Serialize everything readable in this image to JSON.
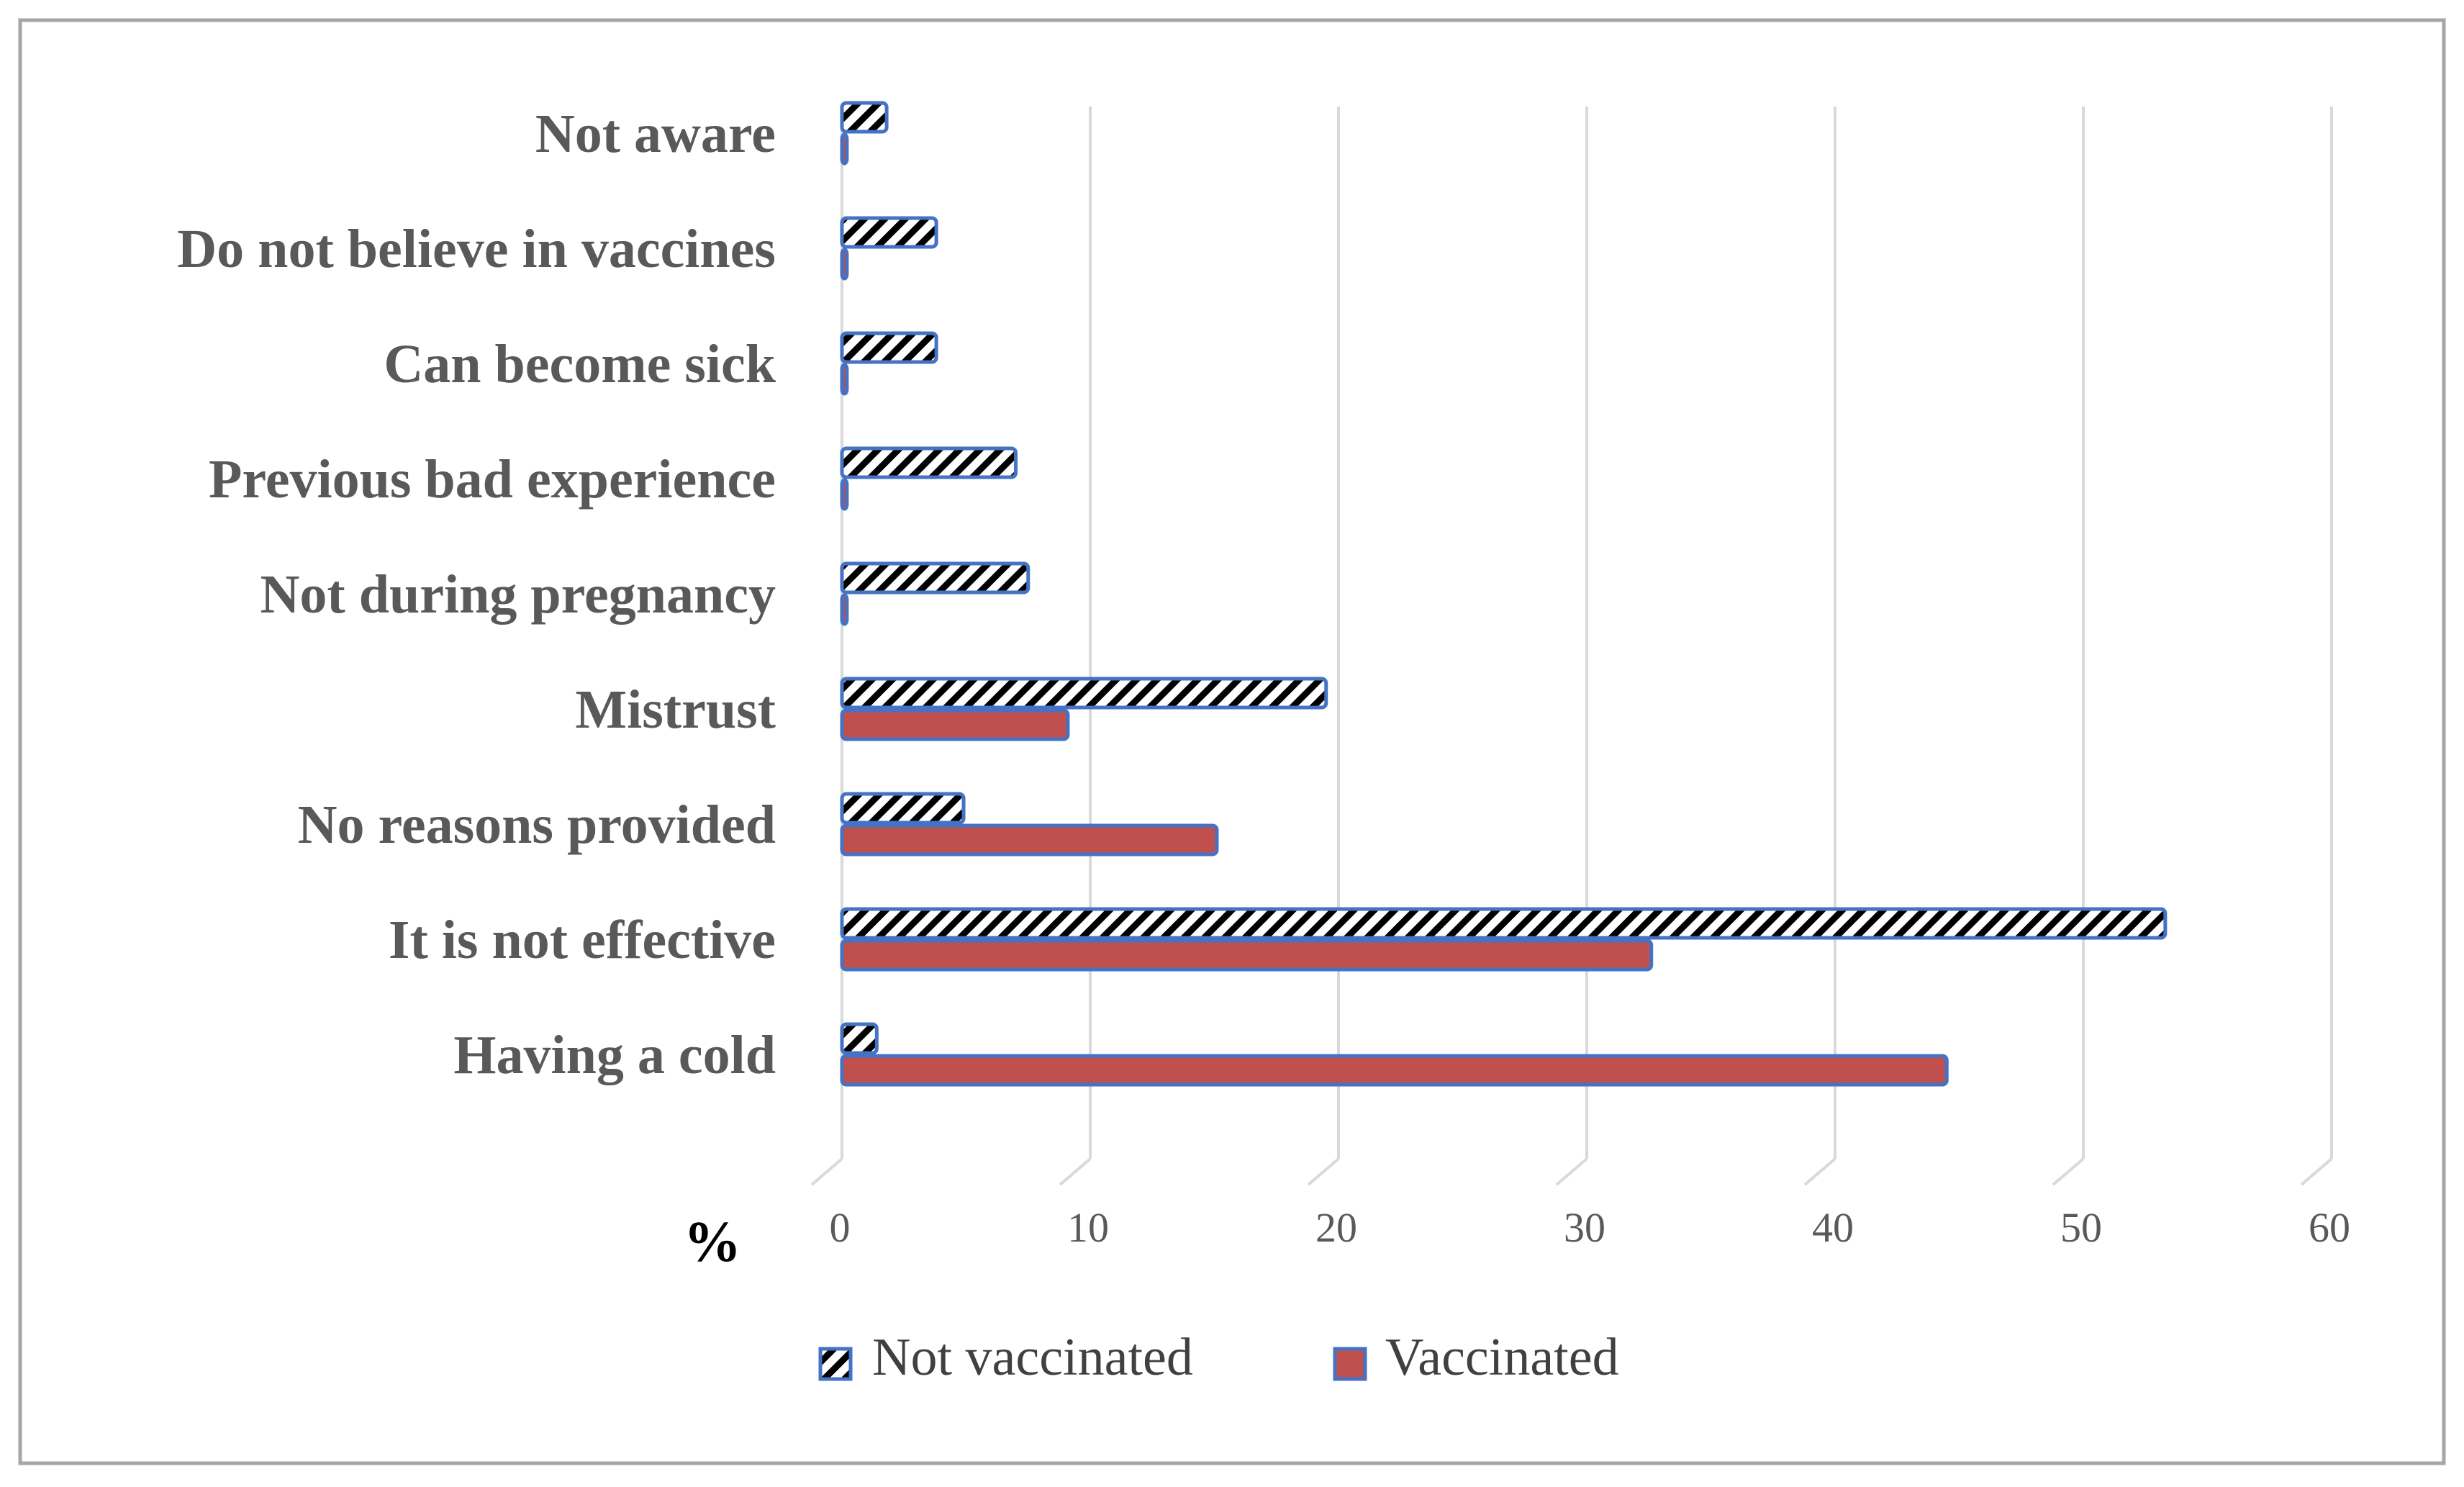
{
  "chart_data": {
    "type": "bar",
    "orientation": "horizontal",
    "title": "",
    "xlabel": "",
    "ylabel": "",
    "unit_label": "%",
    "xlim": [
      0,
      60
    ],
    "ticks": [
      0,
      10,
      20,
      30,
      40,
      50,
      60
    ],
    "grid": true,
    "legend_position": "bottom",
    "categories": [
      "Not aware",
      "Do not believe in vaccines",
      "Can become sick",
      "Previous bad experience",
      "Not during pregnancy",
      "Mistrust",
      "No reasons provided",
      "It is not effective",
      "Having a cold"
    ],
    "series": [
      {
        "name": "Not vaccinated",
        "pattern": "diagonal-hatch",
        "fill_color": "#000000",
        "background_color": "#ffffff",
        "border_color": "#4472c4",
        "values": [
          1.8,
          3.8,
          3.8,
          7.0,
          7.5,
          19.5,
          4.9,
          53.3,
          1.4
        ]
      },
      {
        "name": "Vaccinated",
        "pattern": "solid",
        "fill_color": "#c0504d",
        "border_color": "#4472c4",
        "values": [
          0.2,
          0.2,
          0.2,
          0.2,
          0.2,
          9.1,
          15.1,
          32.6,
          44.5
        ]
      }
    ]
  },
  "colors": {
    "gridline": "#d9d9d9",
    "frame": "#a6a6a6",
    "label_text": "#595959"
  }
}
